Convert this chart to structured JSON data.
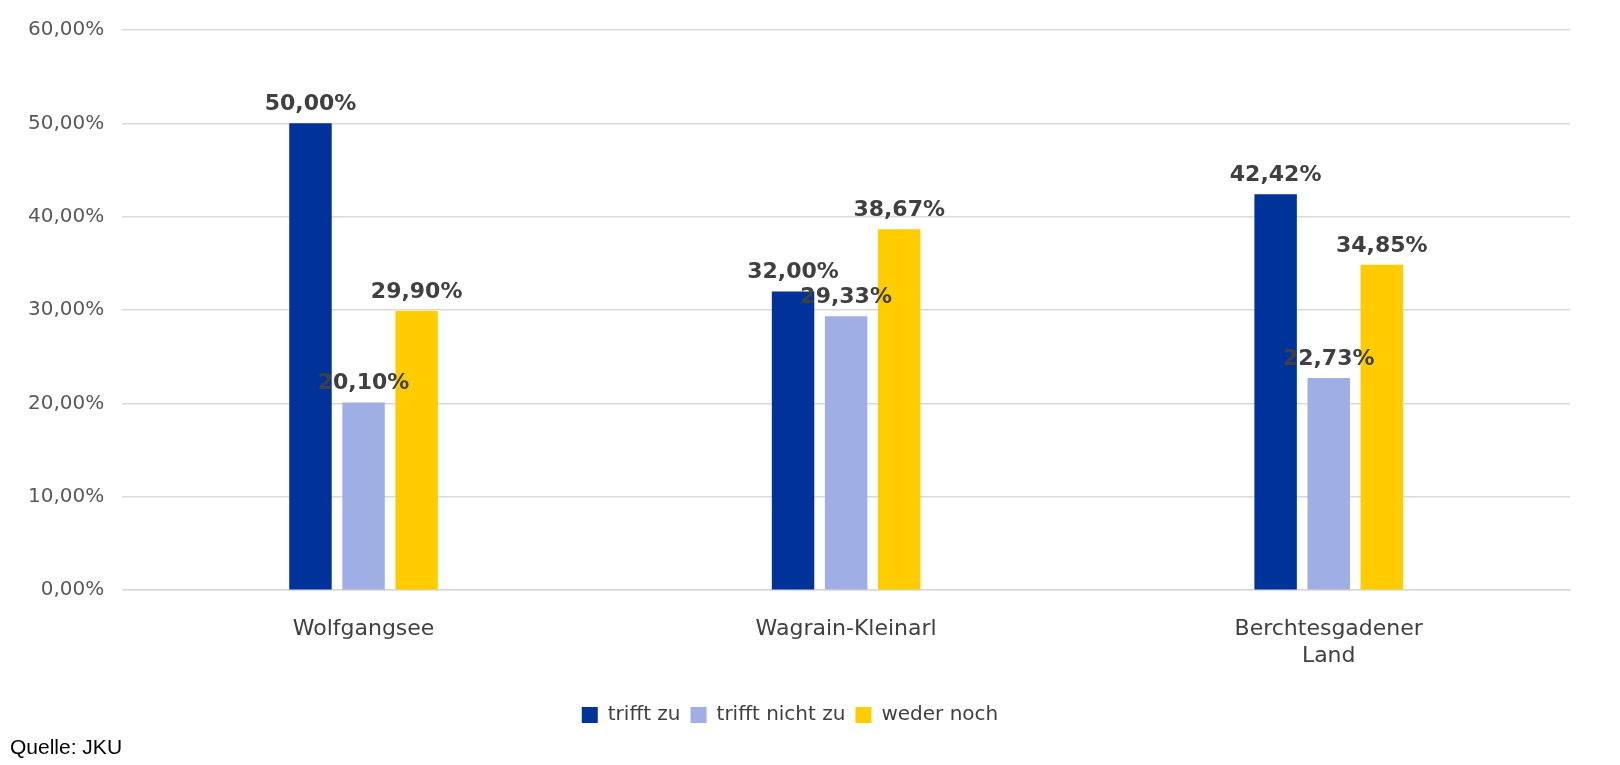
{
  "chart_data": {
    "type": "bar",
    "categories": [
      "Wolfgangsee",
      "Wagrain-Kleinarl",
      "Berchtesgadener Land"
    ],
    "series": [
      {
        "name": "trifft zu",
        "color": "#003399",
        "values": [
          50,
          32,
          42.42
        ],
        "value_labels": [
          "50,00%",
          "32,00%",
          "42,42%"
        ]
      },
      {
        "name": "trifft nicht zu",
        "color": "#a0aee6",
        "values": [
          20.1,
          29.33,
          22.73
        ],
        "value_labels": [
          "20,10%",
          "29,33%",
          "22,73%"
        ]
      },
      {
        "name": "weder noch",
        "color": "#ffcc00",
        "values": [
          29.9,
          38.67,
          34.85
        ],
        "value_labels": [
          "29,90%",
          "38,67%",
          "34,85%"
        ]
      }
    ],
    "ylim": [
      0,
      60
    ],
    "yticks": [
      {
        "value": 0,
        "label": "0,00%"
      },
      {
        "value": 10,
        "label": "10,00%"
      },
      {
        "value": 20,
        "label": "20,00%"
      },
      {
        "value": 30,
        "label": "30,00%"
      },
      {
        "value": 40,
        "label": "40,00%"
      },
      {
        "value": 50,
        "label": "50,00%"
      },
      {
        "value": 60,
        "label": "60,00%"
      }
    ],
    "grid": "y",
    "legend": "bottom",
    "annotations": [
      "Quelle: JKU"
    ]
  }
}
